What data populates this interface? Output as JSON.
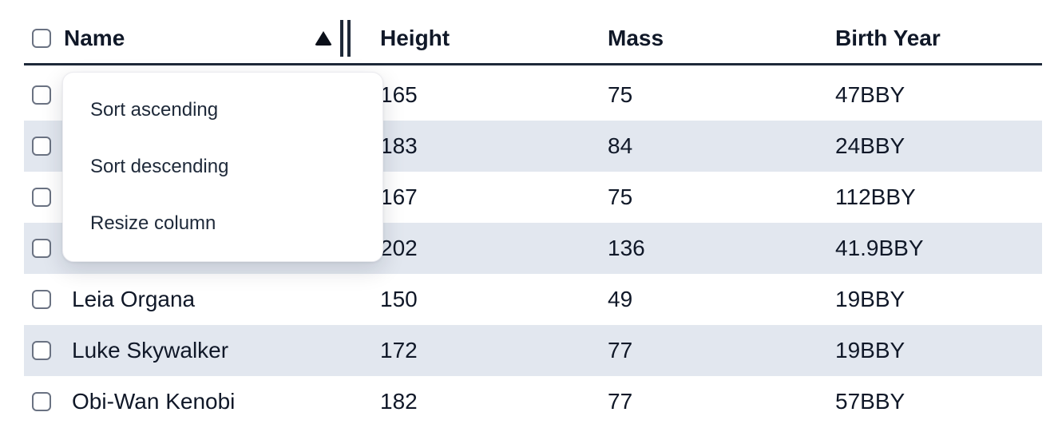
{
  "table": {
    "columns": [
      {
        "label": "Name"
      },
      {
        "label": "Height"
      },
      {
        "label": "Mass"
      },
      {
        "label": "Birth Year"
      }
    ],
    "sort": {
      "column": "Name",
      "direction": "ascending"
    },
    "rows": [
      {
        "name": "",
        "height": "165",
        "mass": "75",
        "birth_year": "47BBY"
      },
      {
        "name": "",
        "height": "183",
        "mass": "84",
        "birth_year": "24BBY"
      },
      {
        "name": "",
        "height": "167",
        "mass": "75",
        "birth_year": "112BBY"
      },
      {
        "name": "",
        "height": "202",
        "mass": "136",
        "birth_year": "41.9BBY"
      },
      {
        "name": "Leia Organa",
        "height": "150",
        "mass": "49",
        "birth_year": "19BBY"
      },
      {
        "name": "Luke Skywalker",
        "height": "172",
        "mass": "77",
        "birth_year": "19BBY"
      },
      {
        "name": "Obi-Wan Kenobi",
        "height": "182",
        "mass": "77",
        "birth_year": "57BBY"
      }
    ]
  },
  "menu": {
    "items": [
      {
        "label": "Sort ascending"
      },
      {
        "label": "Sort descending"
      },
      {
        "label": "Resize column"
      }
    ]
  },
  "icons": {
    "sort_indicator": "triangle-up",
    "resize_handle": "double-vertical-bars"
  },
  "colors": {
    "row_stripe": "#e2e7ef",
    "header_border": "#1e2939",
    "text": "#101828",
    "menu_text": "#1e2939",
    "checkbox_border": "#6a7282"
  }
}
